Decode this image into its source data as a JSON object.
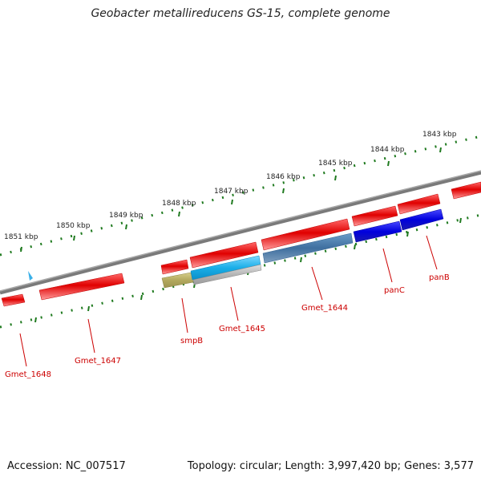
{
  "title": "Geobacter metallireducens GS-15, complete genome",
  "footer": {
    "accession": "Accession: NC_007517",
    "summary": "Topology: circular; Length: 3,997,420 bp; Genes: 3,577"
  },
  "colors": {
    "backbone": "#777777",
    "tick": "#1f7a1f",
    "label": "#cc0000",
    "gene_red": "#e00000",
    "gene_blue": "#0000dd",
    "gene_steel": "#3f6f9f",
    "gene_cyan": "#1aaee8",
    "gene_khaki": "#b3a95e",
    "gene_gray": "#b5b5b5",
    "marker": "#3ab0e8"
  },
  "scale_labels": [
    "1851 kbp",
    "1850 kbp",
    "1849 kbp",
    "1848 kbp",
    "1847 kbp",
    "1846 kbp",
    "1845 kbp",
    "1844 kbp",
    "1843 kbp"
  ],
  "gene_labels": [
    "Gmet_1648",
    "Gmet_1647",
    "smpB",
    "Gmet_1645",
    "Gmet_1644",
    "panC",
    "panB"
  ]
}
